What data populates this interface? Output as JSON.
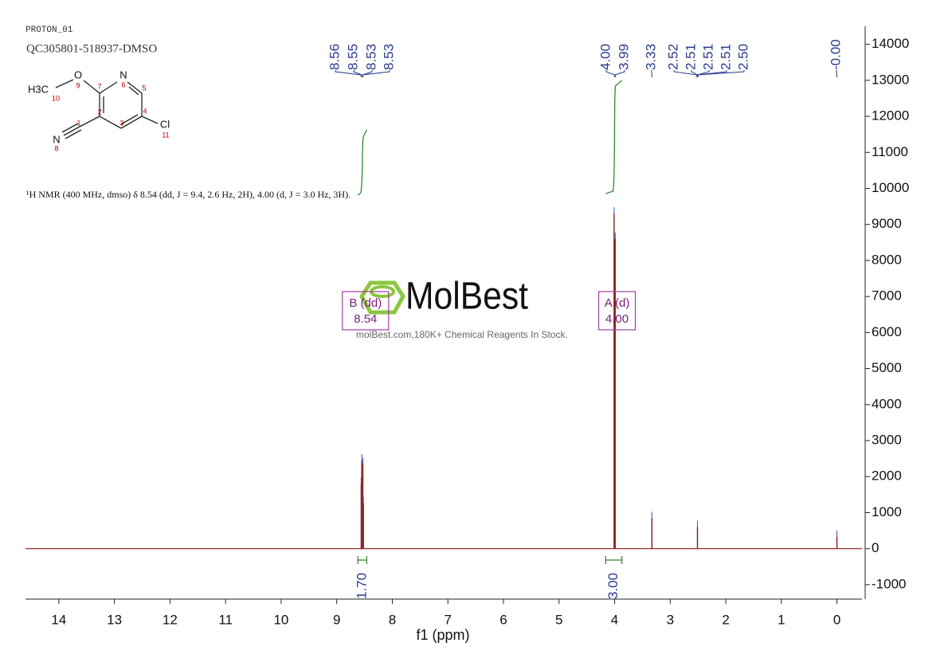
{
  "header": {
    "experiment": "PROTON_01",
    "sample": "QC305801-518937-DMSO"
  },
  "structure": {
    "atoms": [
      "H3C",
      "O",
      "N",
      "Cl",
      "N"
    ],
    "numbers": [
      "10",
      "9",
      "7",
      "6",
      "5",
      "4",
      "11",
      "3",
      "2",
      "1",
      "8"
    ]
  },
  "watermark": {
    "logo": "MolBest",
    "tagline": "molBest.com,180K+ Chemical Reagents In Stock."
  },
  "chart_data": {
    "type": "nmr",
    "description": "¹H NMR (400 MHz, dmso) δ 8.54 (dd, J = 9.4, 2.6 Hz, 2H), 4.00 (d, J = 3.0 Hz, 3H).",
    "x_label": "f1 (ppm)",
    "xlim": [
      14.6,
      -0.45
    ],
    "xticks": [
      14,
      13,
      12,
      11,
      10,
      9,
      8,
      7,
      6,
      5,
      4,
      3,
      2,
      1,
      0
    ],
    "ylim": [
      -1400,
      14500
    ],
    "yticks": [
      -1000,
      0,
      1000,
      2000,
      3000,
      4000,
      5000,
      6000,
      7000,
      8000,
      9000,
      10000,
      11000,
      12000,
      13000,
      14000
    ],
    "color": "#8b1a1a",
    "x": [
      8.56,
      8.55,
      8.53,
      8.52,
      4.01,
      3.99,
      3.33,
      2.51,
      0.0
    ],
    "values": [
      1800,
      2450,
      2350,
      1250,
      9300,
      8600,
      850,
      600,
      330
    ],
    "peak_labels": [
      {
        "ppm": 8.56,
        "label": "8.56"
      },
      {
        "ppm": 8.55,
        "label": "8.55"
      },
      {
        "ppm": 8.53,
        "label": "8.53"
      },
      {
        "ppm": 8.53,
        "label": "8.53"
      },
      {
        "ppm": 4.0,
        "label": "4.00"
      },
      {
        "ppm": 3.99,
        "label": "3.99"
      },
      {
        "ppm": 3.33,
        "label": "3.33"
      },
      {
        "ppm": 2.52,
        "label": "2.52"
      },
      {
        "ppm": 2.51,
        "label": "2.51"
      },
      {
        "ppm": 2.51,
        "label": "2.51"
      },
      {
        "ppm": 2.51,
        "label": "2.51"
      },
      {
        "ppm": 2.5,
        "label": "2.50"
      },
      {
        "ppm": 0.0,
        "label": "-0.00"
      }
    ],
    "integrals": [
      {
        "range": [
          8.62,
          8.46
        ],
        "value": 1.7,
        "label": "1.70"
      },
      {
        "range": [
          4.16,
          3.87
        ],
        "value": 3.0,
        "label": "3.00"
      }
    ],
    "multiplets": [
      {
        "name": "B (dd)",
        "ppm": 8.54,
        "shift": "8.54"
      },
      {
        "name": "A (d)",
        "ppm": 4.0,
        "shift": "4.00"
      }
    ]
  }
}
